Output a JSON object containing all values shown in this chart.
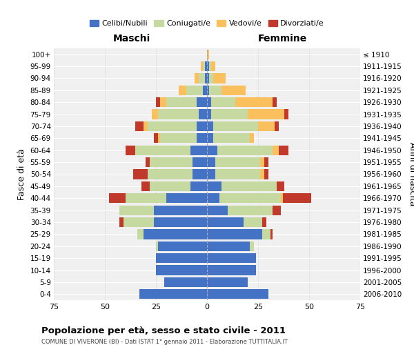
{
  "age_groups": [
    "0-4",
    "5-9",
    "10-14",
    "15-19",
    "20-24",
    "25-29",
    "30-34",
    "35-39",
    "40-44",
    "45-49",
    "50-54",
    "55-59",
    "60-64",
    "65-69",
    "70-74",
    "75-79",
    "80-84",
    "85-89",
    "90-94",
    "95-99",
    "100+"
  ],
  "birth_years": [
    "2006-2010",
    "2001-2005",
    "1996-2000",
    "1991-1995",
    "1986-1990",
    "1981-1985",
    "1976-1980",
    "1971-1975",
    "1966-1970",
    "1961-1965",
    "1956-1960",
    "1951-1955",
    "1946-1950",
    "1941-1945",
    "1936-1940",
    "1931-1935",
    "1926-1930",
    "1921-1925",
    "1916-1920",
    "1911-1915",
    "≤ 1910"
  ],
  "male_celibi": [
    33,
    21,
    25,
    25,
    24,
    31,
    26,
    26,
    20,
    8,
    7,
    7,
    8,
    5,
    5,
    4,
    5,
    2,
    1,
    1,
    0
  ],
  "male_coniugati": [
    0,
    0,
    0,
    0,
    1,
    3,
    15,
    17,
    20,
    20,
    22,
    21,
    27,
    18,
    24,
    20,
    15,
    8,
    3,
    1,
    0
  ],
  "male_vedovi": [
    0,
    0,
    0,
    0,
    0,
    0,
    0,
    0,
    0,
    0,
    0,
    0,
    0,
    1,
    2,
    3,
    3,
    4,
    2,
    1,
    0
  ],
  "male_divorziati": [
    0,
    0,
    0,
    0,
    0,
    0,
    2,
    0,
    8,
    4,
    7,
    2,
    5,
    2,
    4,
    0,
    2,
    0,
    0,
    0,
    0
  ],
  "female_celibi": [
    30,
    20,
    24,
    24,
    21,
    27,
    18,
    10,
    6,
    7,
    4,
    4,
    5,
    3,
    3,
    2,
    2,
    1,
    1,
    1,
    0
  ],
  "female_coniugati": [
    0,
    0,
    0,
    0,
    2,
    4,
    9,
    22,
    30,
    27,
    22,
    22,
    27,
    18,
    22,
    18,
    12,
    6,
    2,
    1,
    0
  ],
  "female_vedovi": [
    0,
    0,
    0,
    0,
    0,
    0,
    0,
    0,
    1,
    0,
    2,
    2,
    3,
    2,
    8,
    18,
    18,
    12,
    6,
    2,
    1
  ],
  "female_divorziati": [
    0,
    0,
    0,
    0,
    0,
    1,
    2,
    4,
    14,
    4,
    2,
    2,
    5,
    0,
    2,
    2,
    2,
    0,
    0,
    0,
    0
  ],
  "colors": {
    "celibi": "#4472c4",
    "coniugati": "#c5d9a0",
    "vedovi": "#fac05e",
    "divorziati": "#c0392b"
  },
  "title": "Popolazione per età, sesso e stato civile - 2011",
  "subtitle": "COMUNE DI VIVERONE (BI) - Dati ISTAT 1° gennaio 2011 - Elaborazione TUTTITALIA.IT",
  "ylabel_left": "Fasce di età",
  "ylabel_right": "Anni di nascita",
  "xlabel_maschi": "Maschi",
  "xlabel_femmine": "Femmine",
  "xlim": 75,
  "background_color": "#f0f0f0",
  "grid_color": "#cccccc"
}
